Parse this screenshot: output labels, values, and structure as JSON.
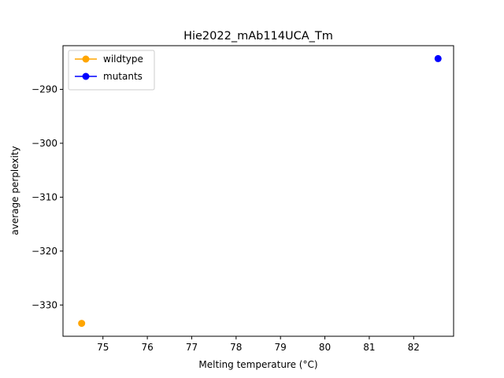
{
  "chart_data": {
    "type": "scatter",
    "title": "Hie2022_mAb114UCA_Tm",
    "xlabel": "Melting temperature (°C)",
    "ylabel": "average perplexity",
    "xlim": [
      74.1,
      82.9
    ],
    "ylim": [
      -335.8,
      -281.9
    ],
    "xticks": [
      75,
      76,
      77,
      78,
      79,
      80,
      81,
      82
    ],
    "yticks": [
      -330,
      -320,
      -310,
      -300,
      -290
    ],
    "grid": false,
    "legend_position": "top-left",
    "series": [
      {
        "name": "wildtype",
        "color": "#ffa500",
        "points": [
          {
            "x": 74.52,
            "y": -333.4
          }
        ]
      },
      {
        "name": "mutants",
        "color": "#0000ff",
        "points": [
          {
            "x": 82.55,
            "y": -284.3
          }
        ]
      }
    ]
  }
}
